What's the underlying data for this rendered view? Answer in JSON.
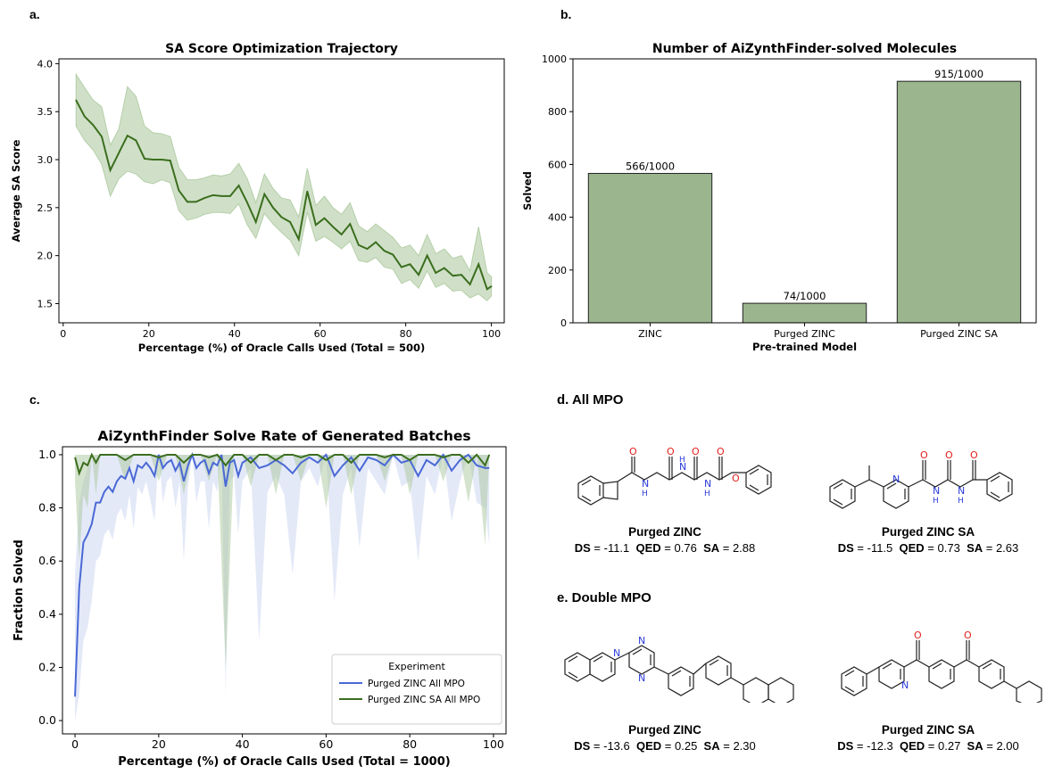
{
  "figure": {
    "panel_letters": {
      "a": "a.",
      "b": "b.",
      "c": "c."
    },
    "section_d": "d. All MPO",
    "section_e": "e. Double MPO",
    "molecules": {
      "d_left": {
        "name": "Purged ZINC",
        "ds_label": "DS",
        "ds": "-11.1",
        "qed_label": "QED",
        "qed": "0.76",
        "sa_label": "SA",
        "sa": "2.88"
      },
      "d_right": {
        "name": "Purged ZINC SA",
        "ds_label": "DS",
        "ds": "-11.5",
        "qed_label": "QED",
        "qed": "0.73",
        "sa_label": "SA",
        "sa": "2.63"
      },
      "e_left": {
        "name": "Purged ZINC",
        "ds_label": "DS",
        "ds": "-13.6",
        "qed_label": "QED",
        "qed": "0.25",
        "sa_label": "SA",
        "sa": "2.30"
      },
      "e_right": {
        "name": "Purged ZINC SA",
        "ds_label": "DS",
        "ds": "-12.3",
        "qed_label": "QED",
        "qed": "0.27",
        "sa_label": "SA",
        "sa": "2.00"
      }
    }
  },
  "colors": {
    "dark_green": "#3b6e1e",
    "bar_green": "#9bb58f",
    "blue": "#4a69d6",
    "band_green": "#a9c79b",
    "band_blue": "#c9d3f2",
    "red_atom": "#e0201b",
    "blue_atom": "#2b3bd9"
  },
  "chart_data": [
    {
      "type": "line",
      "title": "SA Score Optimization Trajectory",
      "xlabel": "Percentage (%) of Oracle Calls Used (Total = 500)",
      "ylabel": "Average SA Score",
      "xlim": [
        -1,
        103
      ],
      "ylim": [
        1.3,
        4.05
      ],
      "xticks": [
        0,
        20,
        40,
        60,
        80,
        100
      ],
      "yticks": [
        1.5,
        2.0,
        2.5,
        3.0,
        3.5,
        4.0
      ],
      "series": [
        {
          "x": [
            3,
            5,
            7,
            9,
            11,
            13,
            15,
            17,
            19,
            21,
            23,
            25,
            27,
            29,
            31,
            33,
            35,
            37,
            39,
            41,
            43,
            45,
            47,
            49,
            51,
            53,
            55,
            57,
            59,
            61,
            63,
            65,
            67,
            69,
            71,
            73,
            75,
            77,
            79,
            81,
            83,
            85,
            87,
            89,
            91,
            93,
            95,
            97,
            99,
            100
          ],
          "y": [
            3.62,
            3.45,
            3.36,
            3.24,
            2.89,
            3.07,
            3.25,
            3.2,
            3.01,
            3.0,
            3.0,
            2.99,
            2.68,
            2.56,
            2.56,
            2.6,
            2.63,
            2.62,
            2.62,
            2.73,
            2.55,
            2.35,
            2.64,
            2.5,
            2.4,
            2.35,
            2.17,
            2.67,
            2.32,
            2.39,
            2.3,
            2.22,
            2.33,
            2.11,
            2.07,
            2.14,
            2.05,
            2.01,
            1.88,
            1.91,
            1.8,
            2.0,
            1.82,
            1.87,
            1.79,
            1.8,
            1.7,
            1.91,
            1.65,
            1.68
          ],
          "lower": [
            3.35,
            3.2,
            3.1,
            2.95,
            2.62,
            2.8,
            2.88,
            2.85,
            2.77,
            2.75,
            2.79,
            2.76,
            2.47,
            2.37,
            2.39,
            2.43,
            2.45,
            2.45,
            2.44,
            2.54,
            2.32,
            2.18,
            2.44,
            2.33,
            2.24,
            2.16,
            2.0,
            2.45,
            2.15,
            2.2,
            2.14,
            2.07,
            2.15,
            1.95,
            1.93,
            1.98,
            1.88,
            1.86,
            1.71,
            1.75,
            1.66,
            1.84,
            1.67,
            1.71,
            1.63,
            1.64,
            1.56,
            1.6,
            1.53,
            1.58
          ],
          "upper": [
            3.89,
            3.75,
            3.62,
            3.55,
            3.15,
            3.32,
            3.76,
            3.66,
            3.35,
            3.28,
            3.27,
            3.24,
            2.92,
            2.79,
            2.79,
            2.81,
            2.84,
            2.83,
            2.85,
            2.96,
            2.8,
            2.55,
            2.85,
            2.7,
            2.6,
            2.58,
            2.4,
            2.91,
            2.52,
            2.62,
            2.5,
            2.43,
            2.55,
            2.31,
            2.25,
            2.33,
            2.26,
            2.19,
            2.08,
            2.11,
            2.0,
            2.22,
            2.02,
            2.07,
            1.97,
            2.0,
            1.84,
            2.3,
            1.82,
            1.78
          ]
        }
      ]
    },
    {
      "type": "bar",
      "title": "Number of AiZynthFinder-solved Molecules",
      "xlabel": "Pre-trained Model",
      "ylabel": "Solved",
      "ylim": [
        0,
        1000
      ],
      "yticks": [
        0,
        200,
        400,
        600,
        800,
        1000
      ],
      "categories": [
        "ZINC",
        "Purged ZINC",
        "Purged ZINC SA"
      ],
      "values": [
        566,
        74,
        915
      ],
      "labels": [
        "566/1000",
        "74/1000",
        "915/1000"
      ]
    },
    {
      "type": "line",
      "title": "AiZynthFinder Solve Rate of Generated Batches",
      "xlabel": "Percentage (%) of Oracle Calls Used (Total = 1000)",
      "ylabel": "Fraction Solved",
      "xlim": [
        -3,
        103
      ],
      "ylim": [
        -0.05,
        1.03
      ],
      "xticks": [
        0,
        20,
        40,
        60,
        80,
        100
      ],
      "yticks": [
        0.0,
        0.2,
        0.4,
        0.6,
        0.8,
        1.0
      ],
      "legend": {
        "title": "Experiment",
        "position": "lower-right"
      },
      "series": [
        {
          "name": "Purged ZINC All MPO",
          "x": [
            0,
            1,
            2,
            3,
            4,
            5,
            6,
            7,
            8,
            9,
            10,
            11,
            12,
            13,
            14,
            15,
            16,
            17,
            18,
            19,
            20,
            21,
            22,
            23,
            24,
            25,
            26,
            27,
            28,
            29,
            30,
            31,
            32,
            33,
            34,
            35,
            36,
            37,
            38,
            39,
            40,
            42,
            44,
            46,
            48,
            50,
            52,
            54,
            56,
            58,
            60,
            62,
            64,
            66,
            68,
            70,
            72,
            74,
            76,
            78,
            80,
            82,
            84,
            86,
            88,
            90,
            92,
            94,
            96,
            98,
            99
          ],
          "y": [
            0.09,
            0.5,
            0.67,
            0.7,
            0.74,
            0.82,
            0.82,
            0.86,
            0.88,
            0.86,
            0.9,
            0.92,
            0.91,
            0.95,
            0.9,
            0.96,
            0.95,
            0.97,
            0.95,
            0.92,
            1.0,
            0.95,
            0.97,
            0.98,
            0.94,
            0.97,
            0.9,
            0.96,
            1.0,
            0.95,
            0.97,
            0.98,
            0.93,
            0.97,
            0.96,
            1.0,
            0.88,
            0.97,
            0.98,
            0.92,
            0.97,
            0.99,
            0.95,
            0.96,
            0.98,
            0.96,
            0.93,
            0.97,
            0.99,
            0.97,
            1.0,
            0.92,
            0.96,
            0.99,
            0.94,
            0.99,
            0.98,
            0.96,
            1.0,
            0.97,
            0.98,
            0.92,
            0.98,
            0.96,
            1.0,
            0.94,
            0.98,
            1.0,
            0.96,
            0.95,
            0.95
          ],
          "lower": [
            0.0,
            0.1,
            0.3,
            0.35,
            0.45,
            0.6,
            0.62,
            0.7,
            0.72,
            0.68,
            0.77,
            0.8,
            0.75,
            0.85,
            0.72,
            0.88,
            0.85,
            0.9,
            0.83,
            0.75,
            1.0,
            0.82,
            0.9,
            0.92,
            0.8,
            0.9,
            0.6,
            0.88,
            1.0,
            0.82,
            0.9,
            0.9,
            0.72,
            0.9,
            0.86,
            1.0,
            0.1,
            0.9,
            0.92,
            0.7,
            0.9,
            0.95,
            0.3,
            0.86,
            0.92,
            0.85,
            0.55,
            0.9,
            0.95,
            0.88,
            1.0,
            0.45,
            0.85,
            0.95,
            0.65,
            0.95,
            0.9,
            0.85,
            1.0,
            0.88,
            0.9,
            0.6,
            0.92,
            0.85,
            1.0,
            0.75,
            0.9,
            1.0,
            0.82,
            0.8,
            0.66
          ],
          "upper": [
            0.55,
            0.82,
            0.9,
            0.95,
            0.98,
            1.0,
            1.0,
            1.0,
            1.0,
            1.0,
            1.0,
            1.0,
            1.0,
            1.0,
            1.0,
            1.0,
            1.0,
            1.0,
            1.0,
            1.0,
            1.0,
            1.0,
            1.0,
            1.0,
            1.0,
            1.0,
            1.0,
            1.0,
            1.0,
            1.0,
            1.0,
            1.0,
            1.0,
            1.0,
            1.0,
            1.0,
            1.0,
            1.0,
            1.0,
            1.0,
            1.0,
            1.0,
            1.0,
            1.0,
            1.0,
            1.0,
            1.0,
            1.0,
            1.0,
            1.0,
            1.0,
            1.0,
            1.0,
            1.0,
            1.0,
            1.0,
            1.0,
            1.0,
            1.0,
            1.0,
            1.0,
            1.0,
            1.0,
            1.0,
            1.0,
            1.0,
            1.0,
            1.0,
            1.0,
            1.0,
            1.0
          ]
        },
        {
          "name": "Purged ZINC SA All MPO",
          "x": [
            0,
            1,
            2,
            3,
            4,
            5,
            6,
            7,
            8,
            10,
            12,
            14,
            16,
            18,
            20,
            22,
            24,
            26,
            28,
            30,
            32,
            34,
            36,
            38,
            40,
            42,
            44,
            46,
            48,
            50,
            52,
            54,
            56,
            58,
            60,
            62,
            64,
            66,
            68,
            70,
            72,
            74,
            76,
            78,
            80,
            82,
            84,
            86,
            88,
            90,
            92,
            94,
            96,
            98,
            99
          ],
          "y": [
            0.99,
            0.93,
            0.97,
            0.96,
            1.0,
            0.97,
            1.0,
            1.0,
            1.0,
            1.0,
            0.98,
            1.0,
            1.0,
            1.0,
            0.99,
            1.0,
            1.0,
            0.97,
            1.0,
            1.0,
            0.99,
            1.0,
            0.96,
            1.0,
            1.0,
            0.97,
            1.0,
            1.0,
            0.98,
            1.0,
            1.0,
            0.99,
            1.0,
            1.0,
            0.98,
            1.0,
            1.0,
            0.97,
            1.0,
            1.0,
            1.0,
            0.99,
            1.0,
            1.0,
            0.98,
            1.0,
            1.0,
            1.0,
            0.99,
            1.0,
            1.0,
            0.97,
            1.0,
            0.96,
            1.0
          ],
          "lower": [
            0.9,
            0.6,
            0.85,
            0.8,
            1.0,
            0.85,
            1.0,
            1.0,
            1.0,
            1.0,
            0.9,
            1.0,
            1.0,
            1.0,
            0.9,
            1.0,
            1.0,
            0.85,
            1.0,
            1.0,
            0.9,
            1.0,
            0.2,
            1.0,
            1.0,
            0.88,
            1.0,
            1.0,
            0.85,
            1.0,
            1.0,
            0.9,
            1.0,
            1.0,
            0.8,
            1.0,
            1.0,
            0.85,
            1.0,
            1.0,
            1.0,
            0.9,
            1.0,
            1.0,
            0.85,
            1.0,
            1.0,
            1.0,
            0.9,
            1.0,
            1.0,
            0.82,
            1.0,
            0.66,
            1.0
          ],
          "upper": [
            1.0,
            1.0,
            1.0,
            1.0,
            1.0,
            1.0,
            1.0,
            1.0,
            1.0,
            1.0,
            1.0,
            1.0,
            1.0,
            1.0,
            1.0,
            1.0,
            1.0,
            1.0,
            1.0,
            1.0,
            1.0,
            1.0,
            1.0,
            1.0,
            1.0,
            1.0,
            1.0,
            1.0,
            1.0,
            1.0,
            1.0,
            1.0,
            1.0,
            1.0,
            1.0,
            1.0,
            1.0,
            1.0,
            1.0,
            1.0,
            1.0,
            1.0,
            1.0,
            1.0,
            1.0,
            1.0,
            1.0,
            1.0,
            1.0,
            1.0,
            1.0,
            1.0,
            1.0,
            1.0,
            1.0
          ]
        }
      ]
    }
  ]
}
